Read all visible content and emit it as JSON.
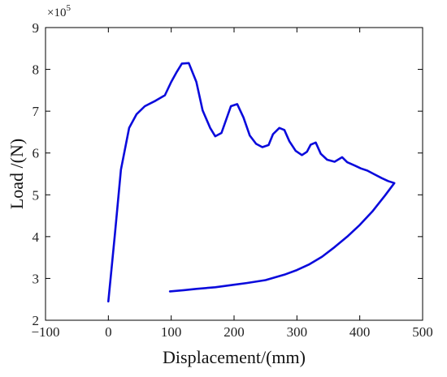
{
  "chart_data": {
    "type": "line",
    "title": "",
    "xlabel": "Displacement/(mm)",
    "ylabel": "Load /(N)",
    "y_multiplier": {
      "base": "×10",
      "exponent": "5"
    },
    "xlim": [
      -100,
      500
    ],
    "ylim": [
      2,
      9
    ],
    "x_ticks": [
      -100,
      0,
      100,
      200,
      300,
      400,
      500
    ],
    "y_ticks": [
      2,
      3,
      4,
      5,
      6,
      7,
      8,
      9
    ],
    "x_tick_labels": [
      "−100",
      "0",
      "100",
      "200",
      "300",
      "400",
      "500"
    ],
    "y_tick_labels": [
      "2",
      "3",
      "4",
      "5",
      "6",
      "7",
      "8",
      "9"
    ],
    "grid": false,
    "line_color": "#0a0adc",
    "series": [
      {
        "x": [
          0,
          10,
          20,
          33,
          45,
          58,
          75,
          90,
          100,
          108,
          117,
          128,
          140,
          150,
          162,
          170,
          180,
          195,
          205,
          215,
          225,
          235,
          245,
          255,
          262,
          272,
          280,
          288,
          298,
          308,
          316,
          322,
          330,
          338,
          348,
          360,
          372,
          380,
          392,
          402,
          412,
          422,
          435,
          445,
          455,
          440,
          420,
          400,
          380,
          360,
          340,
          320,
          300,
          280,
          250,
          220,
          200,
          170,
          140,
          120,
          98
        ],
        "y": [
          2.45,
          4.0,
          5.6,
          6.6,
          6.93,
          7.12,
          7.25,
          7.38,
          7.7,
          7.92,
          8.14,
          8.15,
          7.7,
          7.02,
          6.6,
          6.4,
          6.48,
          7.12,
          7.17,
          6.85,
          6.42,
          6.22,
          6.14,
          6.19,
          6.45,
          6.6,
          6.55,
          6.28,
          6.05,
          5.95,
          6.03,
          6.2,
          6.25,
          5.98,
          5.84,
          5.79,
          5.9,
          5.78,
          5.7,
          5.63,
          5.58,
          5.5,
          5.4,
          5.33,
          5.28,
          4.98,
          4.6,
          4.28,
          4.0,
          3.75,
          3.52,
          3.34,
          3.2,
          3.09,
          2.96,
          2.89,
          2.85,
          2.79,
          2.75,
          2.72,
          2.69
        ]
      }
    ]
  }
}
